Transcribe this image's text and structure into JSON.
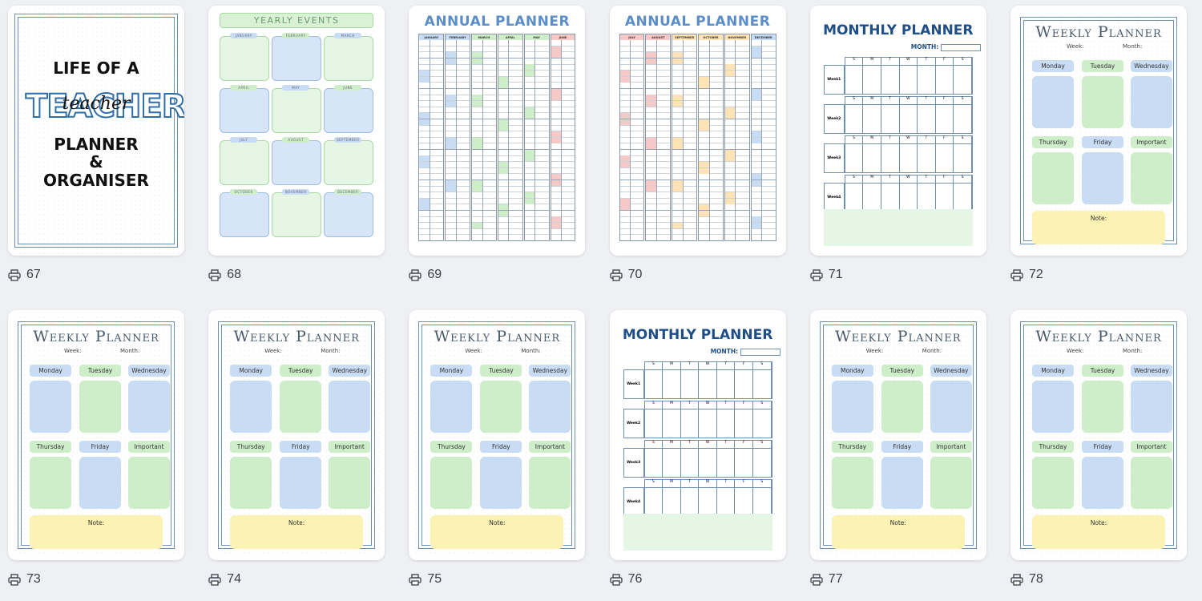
{
  "cards": [
    {
      "num": "67",
      "type": "cover"
    },
    {
      "num": "68",
      "type": "yearly"
    },
    {
      "num": "69",
      "type": "annual1"
    },
    {
      "num": "70",
      "type": "annual2"
    },
    {
      "num": "71",
      "type": "monthly"
    },
    {
      "num": "72",
      "type": "weekly"
    },
    {
      "num": "73",
      "type": "weekly"
    },
    {
      "num": "74",
      "type": "weekly"
    },
    {
      "num": "75",
      "type": "weekly"
    },
    {
      "num": "76",
      "type": "monthly"
    },
    {
      "num": "77",
      "type": "weekly"
    },
    {
      "num": "78",
      "type": "weekly"
    }
  ],
  "cover": {
    "line1": "LIFE OF A",
    "big": "TEACHER",
    "script": "teacher",
    "line2": "PLANNER",
    "amp": "&",
    "line3": "ORGANISER"
  },
  "yearly": {
    "title": "YEARLY EVENTS",
    "months": [
      "JANUARY",
      "FEBRUARY",
      "MARCH",
      "APRIL",
      "MAY",
      "JUNE",
      "JULY",
      "AUGUST",
      "SEPTEMBER",
      "OCTOBER",
      "NOVEMBER",
      "DECEMBER"
    ]
  },
  "annual": {
    "title": "ANNUAL PLANNER",
    "months1": [
      "JANUARY",
      "FEBRUARY",
      "MARCH",
      "APRIL",
      "MAY",
      "JUNE"
    ],
    "months2": [
      "JULY",
      "AUGUST",
      "SEPTEMBER",
      "OCTOBER",
      "NOVEMBER",
      "DECEMBER"
    ]
  },
  "monthly": {
    "title": "MONTHLY PLANNER",
    "month_label": "MONTH:",
    "days": [
      "S",
      "M",
      "T",
      "W",
      "T",
      "F",
      "S"
    ],
    "weeks": [
      "Week1",
      "Week2",
      "Week3",
      "Week4"
    ]
  },
  "weekly": {
    "title": "Weekly Planner",
    "week_label": "Week:",
    "month_label": "Month:",
    "days_top": [
      "Monday",
      "Tuesday",
      "Wednesday"
    ],
    "days_bottom": [
      "Thursday",
      "Friday",
      "Important"
    ],
    "note": "Note:"
  },
  "colors": {
    "blue": "#c8dcf4",
    "green": "#cdeec9",
    "yellow": "#fbf2b4",
    "navy": "#1f4f86",
    "frame": "#6f8fb0"
  }
}
